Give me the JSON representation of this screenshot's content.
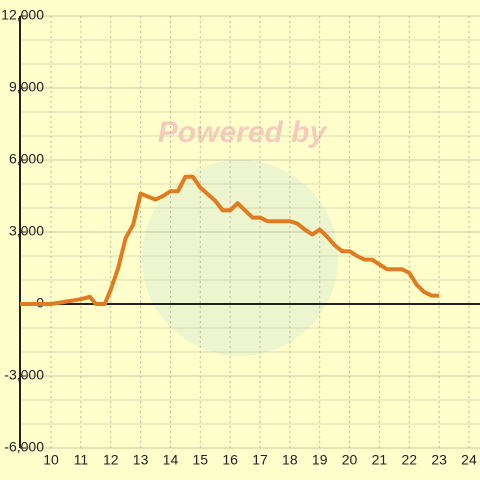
{
  "chart_data": {
    "type": "line",
    "watermark": "Powered by",
    "x": [
      8.96,
      10,
      10.5,
      11,
      11.3,
      11.5,
      11.8,
      12,
      12.25,
      12.5,
      12.75,
      13,
      13.5,
      13.75,
      14,
      14.25,
      14.5,
      14.75,
      15,
      15.5,
      15.75,
      16,
      16.25,
      16.5,
      16.75,
      17,
      17.25,
      18,
      18.25,
      18.5,
      18.75,
      19,
      19.25,
      19.5,
      19.75,
      20,
      20.25,
      20.5,
      20.75,
      21,
      21.25,
      21.75,
      22,
      22.25,
      22.5,
      22.75,
      23
    ],
    "series": [
      {
        "color": "#e07b20",
        "values": [
          0,
          0,
          100,
          200,
          300,
          0,
          0,
          600,
          1500,
          2750,
          3300,
          4600,
          4350,
          4500,
          4700,
          4700,
          5300,
          5300,
          4850,
          4300,
          3900,
          3900,
          4200,
          3900,
          3600,
          3600,
          3450,
          3450,
          3350,
          3100,
          2900,
          3100,
          2800,
          2450,
          2200,
          2200,
          2000,
          1850,
          1850,
          1650,
          1450,
          1450,
          1300,
          800,
          500,
          350,
          350
        ]
      }
    ],
    "xlim": [
      8.96,
      24.37
    ],
    "xticks": [
      10,
      11,
      12,
      13,
      14,
      15,
      16,
      17,
      18,
      19,
      20,
      21,
      22,
      23,
      24
    ],
    "ylim": [
      -6000,
      12000
    ],
    "yticks": [
      {
        "value": -6000,
        "label": "-6,000"
      },
      {
        "value": -3000,
        "label": "-3,000"
      },
      0,
      {
        "value": 3000,
        "label": "3,000"
      },
      {
        "value": 6000,
        "label": "6,000"
      },
      {
        "value": 9000,
        "label": "9,000"
      },
      {
        "value": 12000,
        "label": "12,000"
      }
    ],
    "grid": true
  }
}
